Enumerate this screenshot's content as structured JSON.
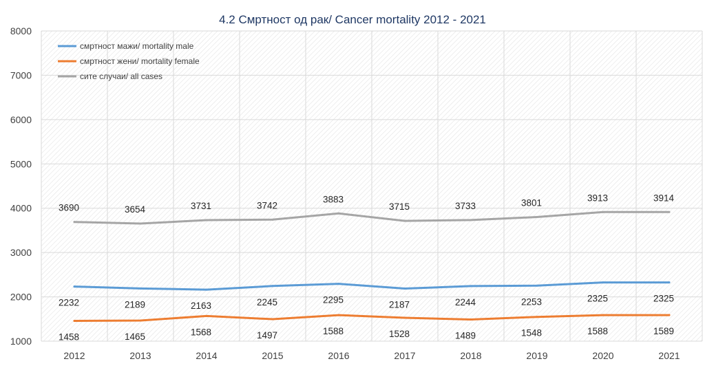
{
  "chart_data": {
    "type": "line",
    "title": "4.2 Смртност од рак/ Cancer mortality  2012 - 2021",
    "xlabel": "",
    "ylabel": "",
    "categories": [
      "2012",
      "2013",
      "2014",
      "2015",
      "2016",
      "2017",
      "2018",
      "2019",
      "2020",
      "2021"
    ],
    "ylim": [
      1000,
      8000
    ],
    "yticks": [
      1000,
      2000,
      3000,
      4000,
      5000,
      6000,
      7000,
      8000
    ],
    "grid": true,
    "legend_position": "top-left",
    "series": [
      {
        "name": "смртност мажи/ mortality male",
        "color": "#5b9bd5",
        "values": [
          2232,
          2189,
          2163,
          2245,
          2295,
          2187,
          2244,
          2253,
          2325,
          2325
        ],
        "label_position": "below"
      },
      {
        "name": "смртност жени/ mortality female",
        "color": "#ed7d31",
        "values": [
          1458,
          1465,
          1568,
          1497,
          1588,
          1528,
          1489,
          1548,
          1588,
          1589
        ],
        "label_position": "below"
      },
      {
        "name": "сите случаи/ all cases",
        "color": "#a5a5a5",
        "values": [
          3690,
          3654,
          3731,
          3742,
          3883,
          3715,
          3733,
          3801,
          3913,
          3914
        ],
        "label_position": "above"
      }
    ]
  }
}
